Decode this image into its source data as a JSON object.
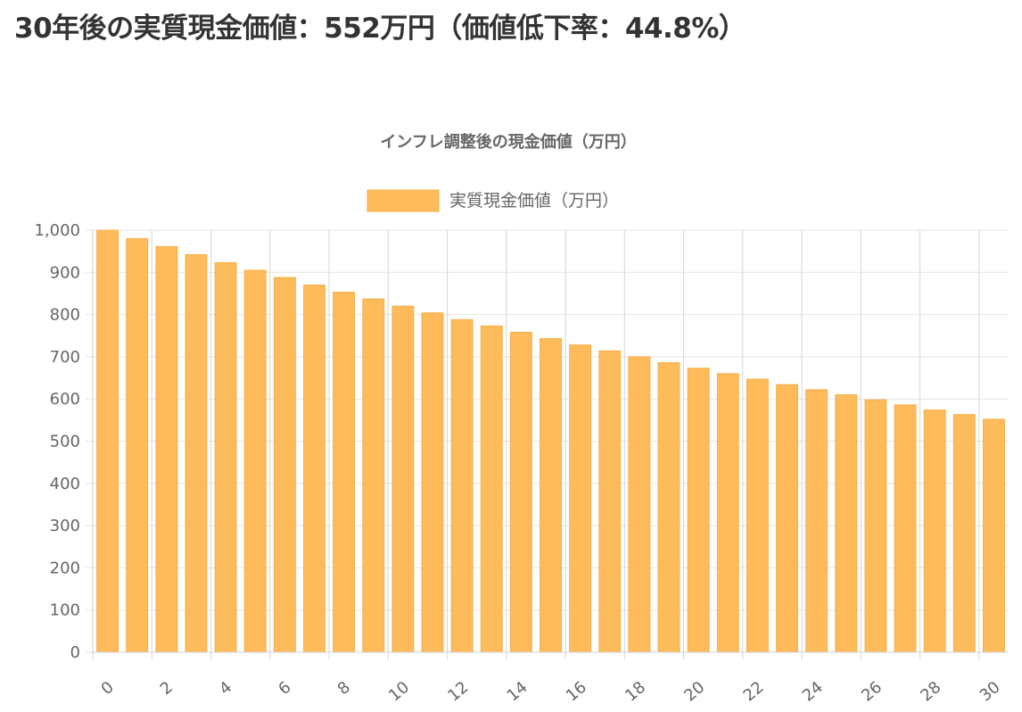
{
  "headline": "30年後の実質現金価値：552万円（価値低下率：44.8%）",
  "colors": {
    "bar_fill": "#fdbb5c",
    "bar_stroke": "#f9ad45",
    "text": "#666666",
    "headline": "#333333"
  },
  "chart_data": {
    "type": "bar",
    "title": "インフレ調整後の現金価値（万円）",
    "xlabel": "",
    "ylabel": "",
    "legend": {
      "position": "top",
      "entries": [
        "実質現金価値（万円）"
      ]
    },
    "grid": true,
    "ylim": [
      0,
      1000
    ],
    "yticks": [
      0,
      100,
      200,
      300,
      400,
      500,
      600,
      700,
      800,
      900,
      1000
    ],
    "ytick_labels": [
      "0",
      "100",
      "200",
      "300",
      "400",
      "500",
      "600",
      "700",
      "800",
      "900",
      "1,000"
    ],
    "categories": [
      0,
      1,
      2,
      3,
      4,
      5,
      6,
      7,
      8,
      9,
      10,
      11,
      12,
      13,
      14,
      15,
      16,
      17,
      18,
      19,
      20,
      21,
      22,
      23,
      24,
      25,
      26,
      27,
      28,
      29,
      30
    ],
    "xtick_labels": [
      "0",
      "2",
      "4",
      "6",
      "8",
      "10",
      "12",
      "14",
      "16",
      "18",
      "20",
      "22",
      "24",
      "26",
      "28",
      "30"
    ],
    "series": [
      {
        "name": "実質現金価値（万円）",
        "values": [
          1000,
          980,
          961,
          942,
          923,
          905,
          888,
          870,
          853,
          837,
          820,
          804,
          788,
          773,
          758,
          743,
          728,
          714,
          700,
          686,
          673,
          660,
          647,
          634,
          622,
          610,
          598,
          586,
          574,
          563,
          552
        ]
      }
    ]
  }
}
